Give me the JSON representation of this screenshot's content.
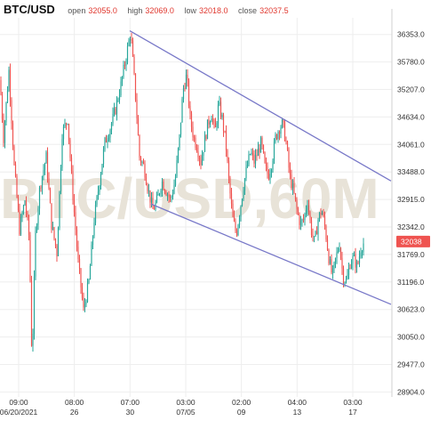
{
  "header": {
    "symbol": "BTC/USD",
    "open_label": "open",
    "open_value": "32055.0",
    "high_label": "high",
    "high_value": "32069.0",
    "low_label": "low",
    "low_value": "32018.0",
    "close_label": "close",
    "close_value": "32037.5"
  },
  "watermark": "BTC/USD,60M",
  "last_price_badge": "32038",
  "colors": {
    "up": "#26a69a",
    "down": "#ef5350",
    "channel": "#7878c8",
    "badge": "#ef5350",
    "grid": "#eeeeee"
  },
  "chart_data": {
    "type": "candlestick",
    "title": "BTC/USD",
    "interval": "60M",
    "y_ticks": [
      36353.0,
      35780.0,
      35207.0,
      34634.0,
      34061.0,
      33488.0,
      32915.0,
      32342.0,
      31769.0,
      31196.0,
      30623.0,
      30050.0,
      29477.0,
      28904.0
    ],
    "y_tick_labels": [
      "36353.0",
      "35780.0",
      "35207.0",
      "34634.0",
      "34061.0",
      "33488.0",
      "32915.0",
      "32342.0",
      "31769.0",
      "31196.0",
      "30623.0",
      "30050.0",
      "29477.0",
      "28904.0"
    ],
    "ylim": [
      28800,
      36700
    ],
    "x_ticks": [
      {
        "time": "09:00",
        "date": "06/20/2021"
      },
      {
        "time": "08:00",
        "date": "26"
      },
      {
        "time": "07:00",
        "date": "30"
      },
      {
        "time": "03:00",
        "date": "07/05"
      },
      {
        "time": "02:00",
        "date": "09"
      },
      {
        "time": "04:00",
        "date": "13"
      },
      {
        "time": "03:00",
        "date": "17"
      }
    ],
    "last_close": 32037.5,
    "price_path": [
      [
        0,
        35400
      ],
      [
        4,
        34200
      ],
      [
        10,
        35600
      ],
      [
        16,
        33600
      ],
      [
        22,
        32300
      ],
      [
        28,
        32900
      ],
      [
        33,
        32100
      ],
      [
        36,
        29500
      ],
      [
        40,
        32200
      ],
      [
        45,
        33200
      ],
      [
        52,
        33800
      ],
      [
        58,
        32400
      ],
      [
        64,
        31800
      ],
      [
        70,
        34300
      ],
      [
        76,
        34600
      ],
      [
        82,
        33000
      ],
      [
        88,
        31600
      ],
      [
        94,
        30600
      ],
      [
        100,
        31200
      ],
      [
        106,
        32500
      ],
      [
        112,
        33300
      ],
      [
        118,
        34100
      ],
      [
        124,
        34400
      ],
      [
        130,
        34800
      ],
      [
        136,
        35300
      ],
      [
        142,
        35900
      ],
      [
        147,
        36400
      ],
      [
        152,
        35200
      ],
      [
        157,
        33800
      ],
      [
        162,
        33600
      ],
      [
        167,
        33100
      ],
      [
        172,
        32700
      ],
      [
        177,
        32900
      ],
      [
        182,
        33300
      ],
      [
        187,
        33100
      ],
      [
        192,
        32900
      ],
      [
        197,
        33300
      ],
      [
        202,
        34200
      ],
      [
        206,
        35200
      ],
      [
        210,
        35500
      ],
      [
        214,
        34600
      ],
      [
        218,
        34200
      ],
      [
        222,
        34000
      ],
      [
        226,
        33700
      ],
      [
        230,
        34100
      ],
      [
        234,
        34500
      ],
      [
        238,
        34700
      ],
      [
        242,
        34300
      ],
      [
        246,
        34900
      ],
      [
        250,
        34600
      ],
      [
        254,
        34100
      ],
      [
        258,
        33200
      ],
      [
        262,
        32500
      ],
      [
        266,
        32200
      ],
      [
        270,
        32700
      ],
      [
        274,
        33200
      ],
      [
        278,
        33600
      ],
      [
        282,
        33900
      ],
      [
        286,
        33700
      ],
      [
        290,
        33900
      ],
      [
        294,
        34100
      ],
      [
        298,
        33600
      ],
      [
        302,
        33400
      ],
      [
        306,
        33700
      ],
      [
        310,
        34200
      ],
      [
        314,
        34400
      ],
      [
        318,
        34500
      ],
      [
        322,
        34100
      ],
      [
        326,
        33400
      ],
      [
        330,
        33100
      ],
      [
        334,
        32700
      ],
      [
        338,
        32400
      ],
      [
        342,
        32500
      ],
      [
        346,
        32900
      ],
      [
        350,
        32300
      ],
      [
        354,
        32000
      ],
      [
        358,
        32500
      ],
      [
        362,
        32700
      ],
      [
        366,
        32300
      ],
      [
        370,
        31700
      ],
      [
        374,
        31300
      ],
      [
        378,
        31700
      ],
      [
        382,
        32000
      ],
      [
        386,
        31300
      ],
      [
        390,
        31200
      ],
      [
        394,
        31600
      ],
      [
        398,
        31700
      ],
      [
        402,
        31500
      ],
      [
        406,
        31900
      ],
      [
        410,
        32038
      ]
    ],
    "channel_upper": [
      [
        146,
        36430
      ],
      [
        440,
        33300
      ]
    ],
    "channel_lower": [
      [
        170,
        32820
      ],
      [
        440,
        30730
      ]
    ]
  }
}
